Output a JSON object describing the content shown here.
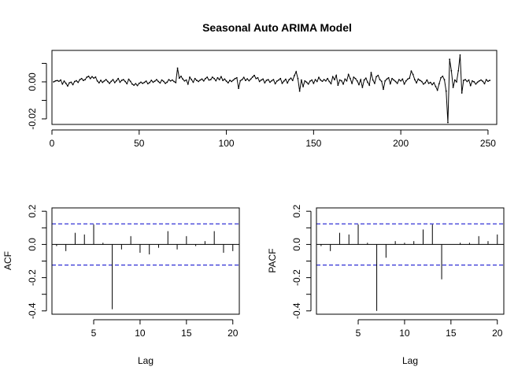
{
  "chart_data": [
    {
      "type": "line",
      "title": "Seasonal Auto ARIMA Model",
      "xlabel": "",
      "ylabel": "",
      "xlim": [
        0,
        255
      ],
      "ylim": [
        -0.023,
        0.017
      ],
      "xticks": [
        0,
        50,
        100,
        150,
        200,
        250
      ],
      "xtick_labels": [
        "0",
        "50",
        "100",
        "150",
        "200",
        "250"
      ],
      "yticks": [
        -0.02,
        -0.01,
        0.0,
        0.01
      ],
      "ytick_labels": [
        "-0.02",
        "",
        "0.00",
        ""
      ],
      "points": true,
      "x_start": 1,
      "values": [
        0.0,
        0.0005,
        0.0007,
        0.0003,
        0.001,
        -0.0012,
        0.0004,
        -0.0008,
        -0.0022,
        -0.0005,
        -0.0002,
        -0.0015,
        0.0002,
        0.0006,
        -0.0003,
        0.0012,
        0.0018,
        0.0008,
        0.0012,
        0.0025,
        0.003,
        0.0018,
        0.0028,
        0.002,
        0.0026,
        0.0005,
        -0.0005,
        0.0008,
        -0.0003,
        0.0005,
        0.0012,
        0.0002,
        -0.0008,
        0.0003,
        0.0012,
        -0.0004,
        0.0006,
        0.0018,
        -0.0002,
        0.0008,
        0.0012,
        0.0002,
        -0.001,
        0.0014,
        0.0003,
        -0.0012,
        -0.0018,
        -0.001,
        -0.002,
        -0.0008,
        -0.0002,
        -0.0008,
        -0.0003,
        0.0004,
        -0.001,
        -0.0004,
        0.0008,
        -0.0002,
        0.0004,
        0.0012,
        0.0002,
        -0.0006,
        0.001,
        0.0003,
        -0.0008,
        -0.0002,
        0.0012,
        0.0005,
        0.001,
        0.0002,
        -0.0004,
        0.0074,
        0.002,
        0.003,
        0.0015,
        0.0005,
        0.001,
        -0.0012,
        0.0025,
        0.0012,
        -0.0002,
        0.0018,
        0.0008,
        0.0002,
        0.001,
        0.0015,
        0.0005,
        0.0018,
        0.0025,
        0.001,
        0.0012,
        0.0025,
        0.0018,
        0.0006,
        0.0022,
        0.0012,
        0.0028,
        0.0008,
        0.0015,
        0.0004,
        -0.0005,
        0.0008,
        0.0002,
        0.001,
        0.0018,
        0.0022,
        -0.0035,
        0.0006,
        0.0012,
        0.0024,
        0.0008,
        0.0016,
        0.0006,
        0.0015,
        0.0026,
        0.0035,
        0.0018,
        0.0022,
        0.0002,
        0.001,
        0.0015,
        -0.0005,
        0.0008,
        0.0012,
        -0.0002,
        0.0006,
        0.0012,
        -0.001,
        0.0004,
        0.001,
        0.0018,
        -0.0008,
        0.0004,
        0.0014,
        -0.0006,
        0.0012,
        0.002,
        0.0008,
        0.0034,
        0.0055,
        0.0018,
        -0.005,
        0.001,
        -0.0025,
        0.0005,
        -0.0002,
        -0.0012,
        0.0004,
        0.001,
        -0.0008,
        0.0012,
        0.0002,
        0.0024,
        0.001,
        0.0003,
        0.0012,
        0.0005,
        0.0018,
        0.0002,
        -0.001,
        0.0028,
        0.0012,
        0.0035,
        -0.0018,
        0.001,
        0.0006,
        -0.0012,
        0.0015,
        0.0005,
        0.004,
        0.0018,
        -0.0008,
        0.0025,
        0.0018,
        0.0005,
        -0.0015,
        0.0012,
        -0.003,
        0.001,
        0.002,
        -0.0002,
        -0.0018,
        0.005,
        0.001,
        -0.0008,
        0.0028,
        0.0035,
        0.0012,
        0.0003,
        -0.004,
        0.0005,
        0.0015,
        0.0022,
        -0.001,
        0.0018,
        0.001,
        0.0002,
        -0.0008,
        0.0012,
        0.0005,
        0.0015,
        -0.0012,
        0.0005,
        0.0015,
        0.002,
        0.0058,
        0.004,
        0.0012,
        -0.0005,
        0.0015,
        0.0008,
        0.0002,
        -0.0012,
        -0.0005,
        0.001,
        -0.0008,
        -0.0003,
        -0.0015,
        -0.0005,
        -0.0025,
        -0.0045,
        -0.001,
        0.0022,
        0.003,
        0.0012,
        -0.005,
        -0.022,
        0.0122,
        0.006,
        -0.003,
        0.001,
        0.0,
        0.006,
        0.0145,
        -0.006,
        0.0008,
        0.0012,
        0.0002,
        0.001,
        -0.002,
        0.0005,
        0.0,
        -0.0012,
        -0.0002,
        0.0005,
        0.001,
        0.0003,
        -0.001,
        0.0012,
        0.0003,
        0.0008
      ]
    },
    {
      "type": "bar",
      "xlabel": "Lag",
      "ylabel": "ACF",
      "xlim": [
        0.5,
        20.7
      ],
      "ylim": [
        -0.42,
        0.22
      ],
      "xticks": [
        5,
        10,
        15,
        20
      ],
      "xtick_labels": [
        "5",
        "10",
        "15",
        "20"
      ],
      "yticks": [
        -0.4,
        -0.3,
        -0.2,
        -0.1,
        0.0,
        0.1,
        0.2
      ],
      "ytick_labels": [
        "-0.4",
        "",
        "-0.2",
        "",
        "0.0",
        "",
        "0.2"
      ],
      "confidence_band": 0.124,
      "lags": [
        1,
        2,
        3,
        4,
        5,
        6,
        7,
        8,
        9,
        10,
        11,
        12,
        13,
        14,
        15,
        16,
        17,
        18,
        19,
        20
      ],
      "values": [
        -0.01,
        -0.04,
        0.07,
        0.06,
        0.12,
        0.01,
        -0.39,
        -0.03,
        0.05,
        -0.05,
        -0.06,
        -0.02,
        0.08,
        -0.03,
        0.05,
        -0.01,
        0.02,
        0.08,
        -0.05,
        -0.04
      ]
    },
    {
      "type": "bar",
      "xlabel": "Lag",
      "ylabel": "PACF",
      "xlim": [
        0.5,
        20.7
      ],
      "ylim": [
        -0.42,
        0.22
      ],
      "xticks": [
        5,
        10,
        15,
        20
      ],
      "xtick_labels": [
        "5",
        "10",
        "15",
        "20"
      ],
      "yticks": [
        -0.4,
        -0.3,
        -0.2,
        -0.1,
        0.0,
        0.1,
        0.2
      ],
      "ytick_labels": [
        "-0.4",
        "",
        "-0.2",
        "",
        "0.0",
        "",
        "0.2"
      ],
      "confidence_band": 0.124,
      "lags": [
        1,
        2,
        3,
        4,
        5,
        6,
        7,
        8,
        9,
        10,
        11,
        12,
        13,
        14,
        15,
        16,
        17,
        18,
        19,
        20
      ],
      "values": [
        -0.01,
        -0.04,
        0.07,
        0.06,
        0.12,
        0.01,
        -0.4,
        -0.08,
        0.02,
        0.01,
        0.02,
        0.09,
        0.12,
        -0.21,
        0.0,
        0.01,
        0.01,
        0.05,
        0.02,
        0.06
      ]
    }
  ]
}
